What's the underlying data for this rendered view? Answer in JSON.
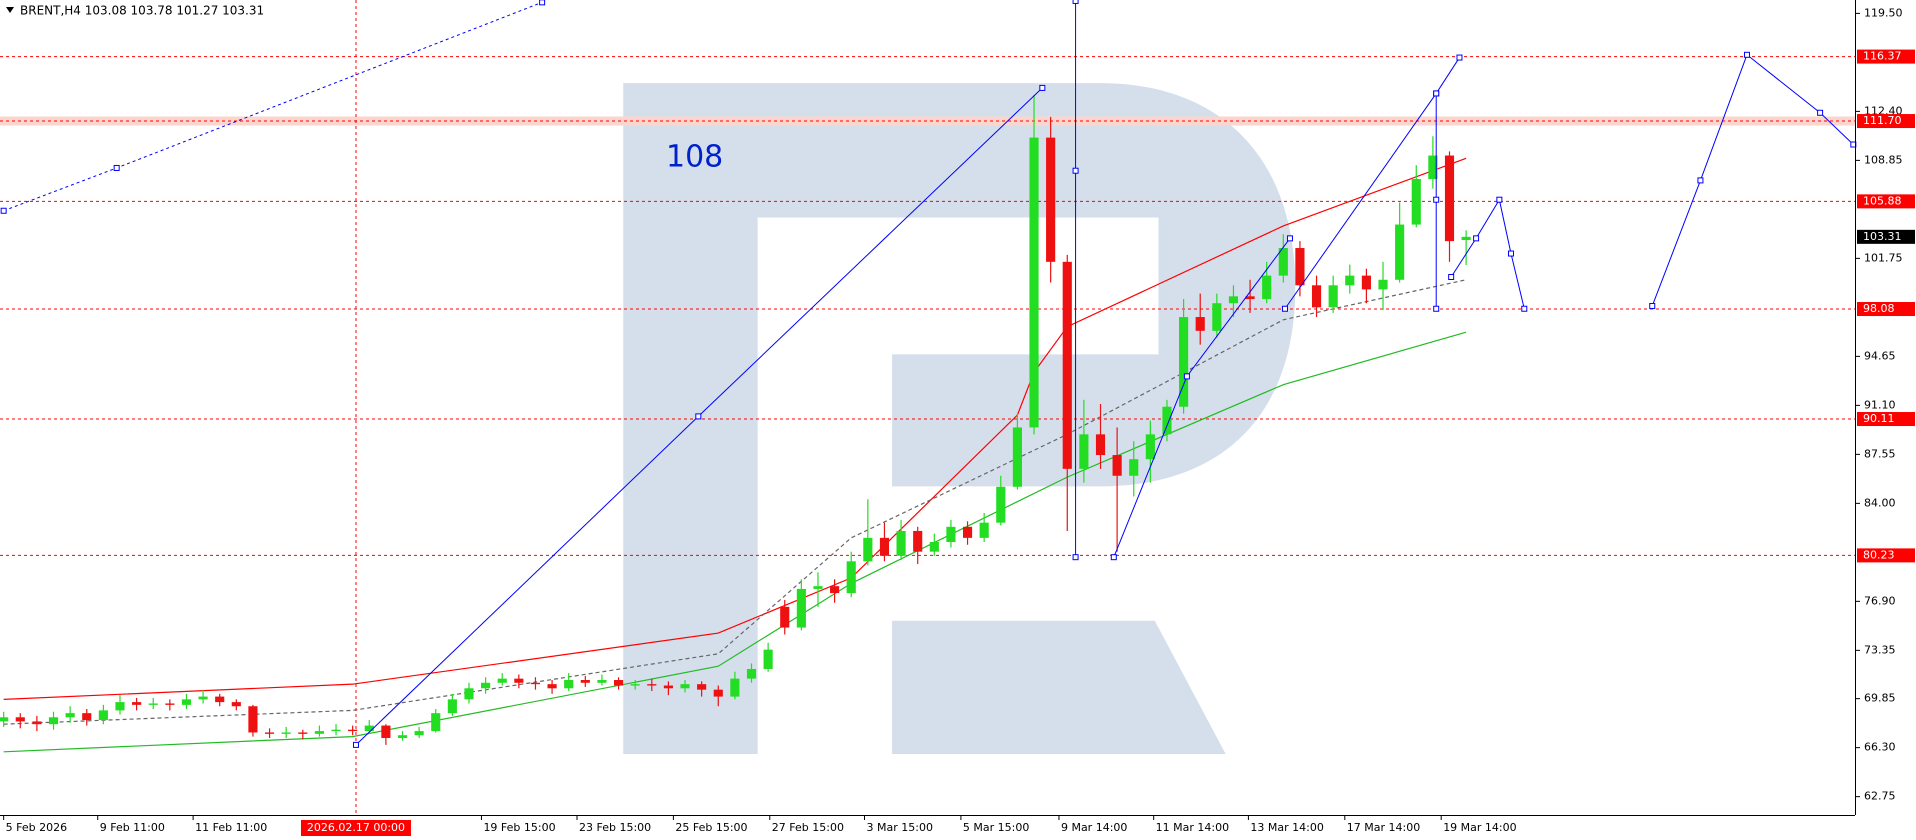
{
  "chart_data": {
    "type": "candlestick",
    "title": "BRENT,H4 103.08 103.78 101.27 103.31",
    "annotation": "108",
    "xlim": [
      -0.22,
      111.4
    ],
    "ylim": [
      61.42,
      120.47
    ],
    "yticks": [
      {
        "value": 119.5,
        "label": "119.50"
      },
      {
        "value": 112.4,
        "label": "112.40"
      },
      108.85,
      101.75,
      94.65,
      {
        "value": 91.1,
        "label": "91.10"
      },
      87.55,
      {
        "value": 84,
        "label": "84.00"
      },
      {
        "value": 76.9,
        "label": "76.90"
      },
      73.35,
      69.85,
      {
        "value": 66.3,
        "label": "66.30"
      },
      62.75
    ],
    "xticks": [
      {
        "value": 0,
        "label": "5 Feb 2026"
      },
      {
        "value": 5.66,
        "label": "9 Feb 11:00"
      },
      {
        "value": 11.4,
        "label": "11 Feb 11:00"
      },
      {
        "value": 28.75,
        "label": "19 Feb 15:00"
      },
      {
        "value": 34.5,
        "label": "23 Feb 15:00"
      },
      {
        "value": 40.3,
        "label": "25 Feb 15:00"
      },
      {
        "value": 46.1,
        "label": "27 Feb 15:00"
      },
      {
        "value": 51.8,
        "label": "3 Mar 15:00"
      },
      {
        "value": 57.6,
        "label": "5 Mar 15:00"
      },
      {
        "value": 63.5,
        "label": "9 Mar 14:00"
      },
      {
        "value": 69.2,
        "label": "11 Mar 14:00"
      },
      {
        "value": 74.9,
        "label": "13 Mar 14:00"
      },
      {
        "value": 80.7,
        "label": "17 Mar 14:00"
      },
      {
        "value": 86.5,
        "label": "19 Mar 14:00"
      }
    ],
    "vline": {
      "value": 21.2,
      "label": "2026.02.17 00:00",
      "color": "#ff0000"
    },
    "levels": [
      116.37,
      {
        "value": 111.7,
        "label": "111.70",
        "band": "#fbd6cf"
      },
      105.88,
      98.08,
      90.11,
      80.23
    ],
    "level_color": "#ff0000",
    "last_price": 103.31,
    "up_color": "#22dd22",
    "down_color": "#ee1111",
    "candles": [
      [
        68.2,
        68.9,
        67.8,
        68.5
      ],
      [
        68.5,
        68.8,
        67.7,
        68.2
      ],
      [
        68.2,
        68.6,
        67.5,
        68.0
      ],
      [
        68.0,
        68.9,
        67.6,
        68.5
      ],
      [
        68.5,
        69.3,
        68.1,
        68.8
      ],
      [
        68.8,
        69.1,
        67.9,
        68.3
      ],
      [
        68.3,
        69.4,
        68.0,
        69.0
      ],
      [
        69.0,
        70.1,
        68.7,
        69.6
      ],
      [
        69.6,
        69.9,
        69.0,
        69.4
      ],
      [
        69.4,
        69.9,
        69.1,
        69.5
      ],
      [
        69.5,
        69.8,
        69.0,
        69.4
      ],
      [
        69.4,
        70.2,
        69.1,
        69.8
      ],
      [
        69.8,
        70.5,
        69.5,
        70.0
      ],
      [
        70.0,
        70.2,
        69.3,
        69.6
      ],
      [
        69.6,
        69.8,
        69.0,
        69.3
      ],
      [
        69.3,
        69.4,
        67.1,
        67.4
      ],
      [
        67.4,
        67.7,
        67.0,
        67.3
      ],
      [
        67.3,
        67.8,
        67.0,
        67.4
      ],
      [
        67.4,
        67.6,
        66.9,
        67.3
      ],
      [
        67.3,
        67.9,
        67.1,
        67.5
      ],
      [
        67.5,
        68.0,
        67.2,
        67.6
      ],
      [
        67.6,
        67.9,
        67.2,
        67.5
      ],
      [
        67.5,
        68.3,
        67.3,
        67.9
      ],
      [
        67.9,
        68.0,
        66.5,
        67.0
      ],
      [
        67.0,
        67.5,
        66.8,
        67.2
      ],
      [
        67.2,
        67.8,
        67.0,
        67.5
      ],
      [
        67.5,
        69.1,
        67.4,
        68.8
      ],
      [
        68.8,
        70.2,
        68.6,
        69.8
      ],
      [
        69.8,
        71.0,
        69.5,
        70.6
      ],
      [
        70.6,
        71.4,
        70.2,
        71.0
      ],
      [
        71.0,
        71.7,
        70.8,
        71.3
      ],
      [
        71.3,
        71.6,
        70.6,
        71.0
      ],
      [
        71.0,
        71.4,
        70.5,
        70.9
      ],
      [
        70.9,
        71.2,
        70.2,
        70.6
      ],
      [
        70.6,
        71.7,
        70.4,
        71.2
      ],
      [
        71.2,
        71.5,
        70.7,
        71.0
      ],
      [
        71.0,
        71.6,
        70.8,
        71.2
      ],
      [
        71.2,
        71.4,
        70.5,
        70.8
      ],
      [
        70.8,
        71.2,
        70.5,
        70.9
      ],
      [
        70.9,
        71.3,
        70.4,
        70.8
      ],
      [
        70.8,
        71.1,
        70.1,
        70.6
      ],
      [
        70.6,
        71.2,
        70.3,
        70.9
      ],
      [
        70.9,
        71.1,
        70.0,
        70.5
      ],
      [
        70.5,
        70.8,
        69.3,
        70.0
      ],
      [
        70.0,
        71.8,
        69.8,
        71.3
      ],
      [
        71.3,
        72.4,
        71.0,
        72.0
      ],
      [
        72.0,
        73.9,
        71.8,
        73.4
      ],
      [
        76.5,
        77.0,
        74.5,
        75.0
      ],
      [
        75.0,
        78.5,
        74.8,
        77.8
      ],
      [
        77.8,
        79.0,
        76.5,
        78.0
      ],
      [
        78.0,
        78.5,
        76.8,
        77.5
      ],
      [
        77.5,
        80.5,
        77.2,
        79.8
      ],
      [
        79.8,
        84.3,
        79.5,
        81.5
      ],
      [
        81.5,
        82.6,
        79.8,
        80.2
      ],
      [
        80.2,
        82.8,
        79.9,
        82.0
      ],
      [
        82.0,
        82.3,
        79.6,
        80.5
      ],
      [
        80.5,
        81.8,
        80.2,
        81.2
      ],
      [
        81.2,
        82.8,
        80.8,
        82.3
      ],
      [
        82.3,
        82.7,
        81.0,
        81.5
      ],
      [
        81.5,
        83.3,
        81.2,
        82.6
      ],
      [
        82.6,
        86.0,
        82.4,
        85.2
      ],
      [
        85.2,
        90.5,
        85.0,
        89.5
      ],
      [
        89.5,
        113.6,
        89.0,
        110.5
      ],
      [
        110.5,
        112.0,
        100.0,
        101.5
      ],
      [
        101.5,
        102.0,
        82.0,
        86.5
      ],
      [
        86.5,
        91.5,
        85.5,
        89.0
      ],
      [
        89.0,
        91.2,
        86.5,
        87.5
      ],
      [
        87.5,
        89.5,
        80.5,
        86.0
      ],
      [
        86.0,
        88.5,
        84.5,
        87.2
      ],
      [
        87.2,
        90.0,
        85.5,
        89.0
      ],
      [
        89.0,
        91.5,
        88.5,
        91.0
      ],
      [
        91.0,
        98.8,
        90.5,
        97.5
      ],
      [
        97.5,
        99.2,
        95.5,
        96.5
      ],
      [
        96.5,
        99.2,
        96.0,
        98.5
      ],
      [
        98.5,
        99.8,
        97.5,
        99.0
      ],
      [
        99.0,
        100.2,
        97.8,
        98.8
      ],
      [
        98.8,
        101.5,
        98.5,
        100.5
      ],
      [
        100.5,
        103.5,
        100.0,
        102.5
      ],
      [
        102.5,
        103.0,
        99.0,
        99.8
      ],
      [
        99.8,
        100.5,
        97.5,
        98.2
      ],
      [
        98.2,
        100.5,
        97.8,
        99.8
      ],
      [
        99.8,
        101.3,
        99.2,
        100.5
      ],
      [
        100.5,
        101.0,
        98.5,
        99.5
      ],
      [
        99.5,
        101.5,
        98.0,
        100.2
      ],
      [
        100.2,
        105.8,
        100.0,
        104.2
      ],
      [
        104.2,
        108.5,
        104.0,
        107.5
      ],
      [
        107.5,
        110.6,
        106.8,
        109.2
      ],
      [
        109.2,
        109.5,
        101.5,
        103.0
      ],
      [
        103.08,
        103.78,
        101.27,
        103.31
      ]
    ],
    "lines": [
      {
        "color": "#ff0000",
        "dash": false,
        "x": [
          0,
          21,
          43,
          51,
          61,
          62,
          64,
          77,
          88
        ],
        "y": [
          69.8,
          70.9,
          74.6,
          78.6,
          90.4,
          93.5,
          96.8,
          104.1,
          109.0
        ]
      },
      {
        "color": "#22bb22",
        "dash": false,
        "x": [
          0,
          21,
          43,
          51,
          64,
          77,
          88
        ],
        "y": [
          66.0,
          67.1,
          72.2,
          78.2,
          85.9,
          92.6,
          96.4
        ]
      },
      {
        "color": "#666666",
        "dash": true,
        "x": [
          0,
          21,
          43,
          51,
          64,
          77,
          88
        ],
        "y": [
          68.0,
          69.0,
          73.1,
          81.5,
          89.0,
          97.3,
          100.2
        ]
      }
    ],
    "drawing_color": "#0000ff",
    "drawings": [
      {
        "dash": true,
        "x": [
          0,
          6.8,
          32.4
        ],
        "y": [
          105.2,
          108.3,
          120.3
        ]
      },
      {
        "dash": false,
        "x": [
          21.2,
          41.8,
          62.5
        ],
        "y": [
          66.5,
          90.3,
          114.1
        ]
      },
      {
        "dash": false,
        "x": [
          64.5,
          64.5,
          64.5
        ],
        "y": [
          120.4,
          108.1,
          80.1
        ]
      },
      {
        "dash": false,
        "x": [
          66.8,
          71.2,
          77.4
        ],
        "y": [
          80.1,
          93.2,
          103.2
        ]
      },
      {
        "dash": false,
        "x": [
          77.1,
          86.2,
          87.6
        ],
        "y": [
          98.1,
          113.7,
          116.3
        ]
      },
      {
        "dash": false,
        "x": [
          86.2,
          86.2,
          86.2
        ],
        "y": [
          113.7,
          106.0,
          98.1
        ]
      },
      {
        "dash": false,
        "x": [
          87.1,
          88.6,
          90.0,
          90.7,
          91.5
        ],
        "y": [
          100.4,
          103.2,
          106.0,
          102.1,
          98.1
        ]
      },
      {
        "dash": false,
        "x": [
          99.2,
          102.1,
          104.9,
          109.3,
          111.3
        ],
        "y": [
          98.3,
          107.4,
          116.5,
          112.3,
          110.0
        ]
      }
    ]
  }
}
